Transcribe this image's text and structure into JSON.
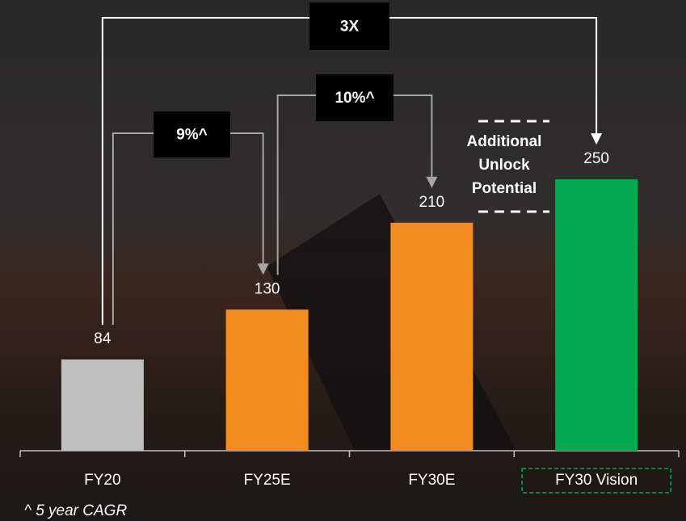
{
  "chart_data": {
    "type": "bar",
    "categories": [
      "FY20",
      "FY25E",
      "FY30E",
      "FY30 Vision"
    ],
    "values": [
      84,
      130,
      210,
      250
    ],
    "colors": [
      "#c0c0c0",
      "#f28c1e",
      "#f28c1e",
      "#00a94f"
    ],
    "highlight_category": 3,
    "highlight_color": "#00a94f",
    "multiple_label": "3X",
    "cagr_labels": [
      "9%^",
      "10%^"
    ],
    "unlock_label": [
      "Additional",
      "Unlock",
      "Potential"
    ],
    "footnote": "^ 5 year CAGR"
  }
}
